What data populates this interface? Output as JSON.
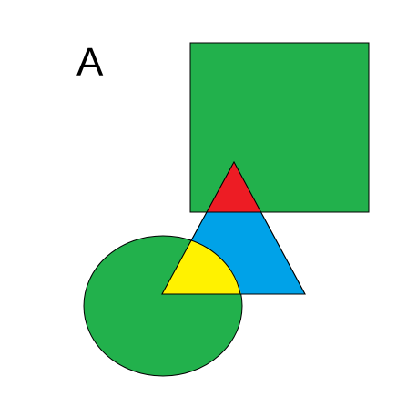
{
  "label": "A",
  "shapes": {
    "square": {
      "name": "square",
      "color": "#22b14c"
    },
    "circle": {
      "name": "circle",
      "color": "#22b14c"
    },
    "triangle": {
      "name": "triangle",
      "color": "#00a2e8"
    },
    "triangle_square_overlap": {
      "name": "triangle-square-overlap",
      "color": "#ed1c24"
    },
    "triangle_circle_overlap": {
      "name": "triangle-circle-overlap",
      "color": "#fff200"
    }
  },
  "stroke_color": "#000000"
}
